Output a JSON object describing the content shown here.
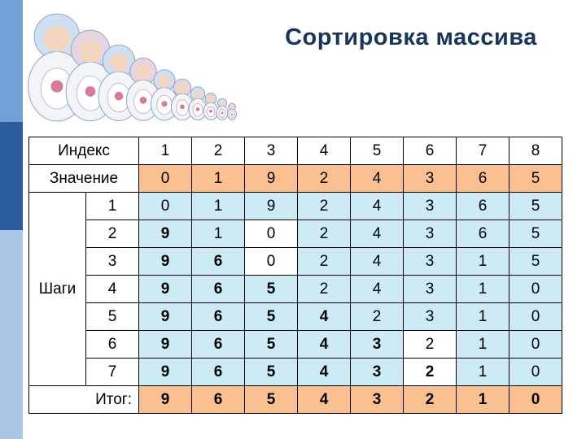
{
  "title": "Сортировка массива",
  "decor": {
    "image": "matryoshka-dolls"
  },
  "colors": {
    "title_blue": "#17355E",
    "orange": "#FAC090",
    "cyan": "#CDEBF5",
    "bar_top": "#6FA1D6",
    "bar_middle": "#2B5C9E",
    "bar_bottom": "#A9C7E5"
  },
  "table": {
    "index_label": "Индекс",
    "value_label": "Значение",
    "steps_label": "Шаги",
    "total_label": "Итог:",
    "indices": [
      "1",
      "2",
      "3",
      "4",
      "5",
      "6",
      "7",
      "8"
    ],
    "values": [
      "0",
      "1",
      "9",
      "2",
      "4",
      "3",
      "6",
      "5"
    ],
    "steps": [
      {
        "num": "1",
        "cells": [
          "0",
          "1",
          "9",
          "2",
          "4",
          "3",
          "6",
          "5"
        ],
        "bold_count": 0,
        "white_cols": []
      },
      {
        "num": "2",
        "cells": [
          "9",
          "1",
          "0",
          "2",
          "4",
          "3",
          "6",
          "5"
        ],
        "bold_count": 1,
        "white_cols": [
          2
        ]
      },
      {
        "num": "3",
        "cells": [
          "9",
          "6",
          "0",
          "2",
          "4",
          "3",
          "1",
          "5"
        ],
        "bold_count": 2,
        "white_cols": [
          2
        ]
      },
      {
        "num": "4",
        "cells": [
          "9",
          "6",
          "5",
          "2",
          "4",
          "3",
          "1",
          "0"
        ],
        "bold_count": 3,
        "white_cols": []
      },
      {
        "num": "5",
        "cells": [
          "9",
          "6",
          "5",
          "4",
          "2",
          "3",
          "1",
          "0"
        ],
        "bold_count": 4,
        "white_cols": []
      },
      {
        "num": "6",
        "cells": [
          "9",
          "6",
          "5",
          "4",
          "3",
          "2",
          "1",
          "0"
        ],
        "bold_count": 5,
        "white_cols": [
          5
        ]
      },
      {
        "num": "7",
        "cells": [
          "9",
          "6",
          "5",
          "4",
          "3",
          "2",
          "1",
          "0"
        ],
        "bold_count": 6,
        "white_cols": [
          5
        ]
      }
    ],
    "total": [
      "9",
      "6",
      "5",
      "4",
      "3",
      "2",
      "1",
      "0"
    ]
  }
}
